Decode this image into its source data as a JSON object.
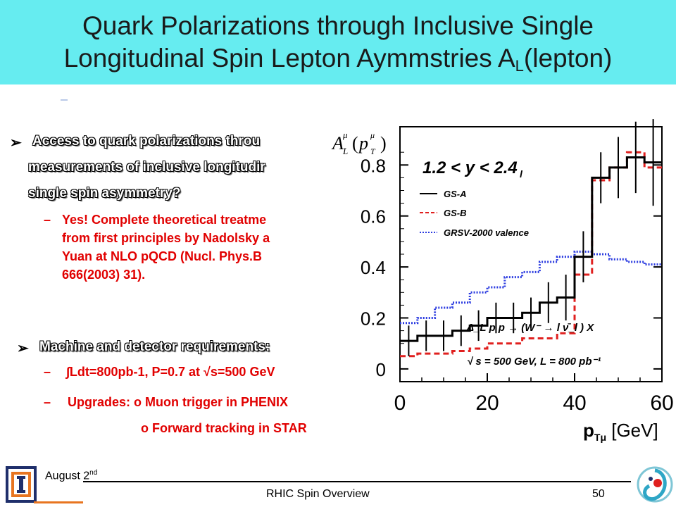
{
  "slide": {
    "title_line1": "Quark Polarizations through Inclusive Single",
    "title_line2_main": "Longitudinal Spin Lepton Aymmstries  A",
    "title_line2_sub": "L",
    "title_line2_tail": "(lepton)"
  },
  "bullets": {
    "b1_line1": "Access to quark polarizations throu",
    "b1_line2": "measurements of inclusive longitudir",
    "b1_line3": "single spin asymmetry?",
    "b1_sub_line1": "Yes! Complete theoretical treatme",
    "b1_sub_line2": "from first principles by Nadolsky a",
    "b1_sub_line3": "Yuan at NLO pQCD (Nucl. Phys.B",
    "b1_sub_line4": "666(2003) 31).",
    "b2_line1": "Machine and detector requirements:",
    "b2_sub1": "∫Ldt=800pb-1, P=0.7 at √s=500 GeV",
    "b2_sub2": "Upgrades: o Muon trigger in PHENIX",
    "b2_sub3": "o Forward tracking in STAR"
  },
  "footer": {
    "date_main": "August 2",
    "date_sup": "nd",
    "center": "RHIC Spin Overview",
    "page": "50"
  },
  "chart_data": {
    "type": "line",
    "title": "1.2 < y_l < 2.4",
    "ylabel_formula": "A_L^μ(p_T^μ)",
    "xlabel": "p_Tμ [GeV]",
    "xlim": [
      0,
      60
    ],
    "ylim": [
      -0.05,
      0.95
    ],
    "x_ticks": [
      "0",
      "20",
      "40",
      "60"
    ],
    "y_ticks": [
      "0",
      "0.2",
      "0.4",
      "0.6",
      "0.8"
    ],
    "annotation_process": "Δ_L p p → (W⁻ → l ν̄_l ) X",
    "annotation_energy": "√ s = 500 GeV, L = 800 pb⁻¹",
    "colors": {
      "gsa": "#000000",
      "gsb": "#e0201f",
      "grsv": "#2b3be0"
    },
    "series": [
      {
        "name": "GS-A",
        "edges": [
          0,
          4,
          8,
          12,
          16,
          20,
          24,
          28,
          32,
          36,
          40,
          44,
          48,
          52,
          56,
          60
        ],
        "values": [
          0.11,
          0.13,
          0.13,
          0.15,
          0.17,
          0.2,
          0.2,
          0.22,
          0.26,
          0.28,
          0.44,
          0.75,
          0.79,
          0.83,
          0.81
        ],
        "errors": [
          0.06,
          0.06,
          0.06,
          0.06,
          0.06,
          0.06,
          0.06,
          0.06,
          0.08,
          0.09,
          0.1,
          0.1,
          0.12,
          0.14,
          0.17
        ]
      },
      {
        "name": "GS-B",
        "edges": [
          0,
          4,
          8,
          12,
          16,
          20,
          24,
          28,
          32,
          36,
          40,
          44,
          48,
          52,
          56,
          60
        ],
        "values": [
          0.05,
          0.06,
          0.06,
          0.07,
          0.08,
          0.1,
          0.1,
          0.12,
          0.12,
          0.14,
          0.37,
          0.74,
          0.79,
          0.85,
          0.79
        ]
      },
      {
        "name": "GRSV-2000 valence",
        "edges": [
          0,
          4,
          8,
          12,
          16,
          20,
          24,
          28,
          32,
          36,
          40,
          44,
          48,
          52,
          56,
          60
        ],
        "values": [
          0.18,
          0.2,
          0.24,
          0.26,
          0.3,
          0.32,
          0.36,
          0.38,
          0.42,
          0.44,
          0.46,
          0.45,
          0.43,
          0.42,
          0.41
        ]
      }
    ],
    "legend_position": "top-left"
  }
}
